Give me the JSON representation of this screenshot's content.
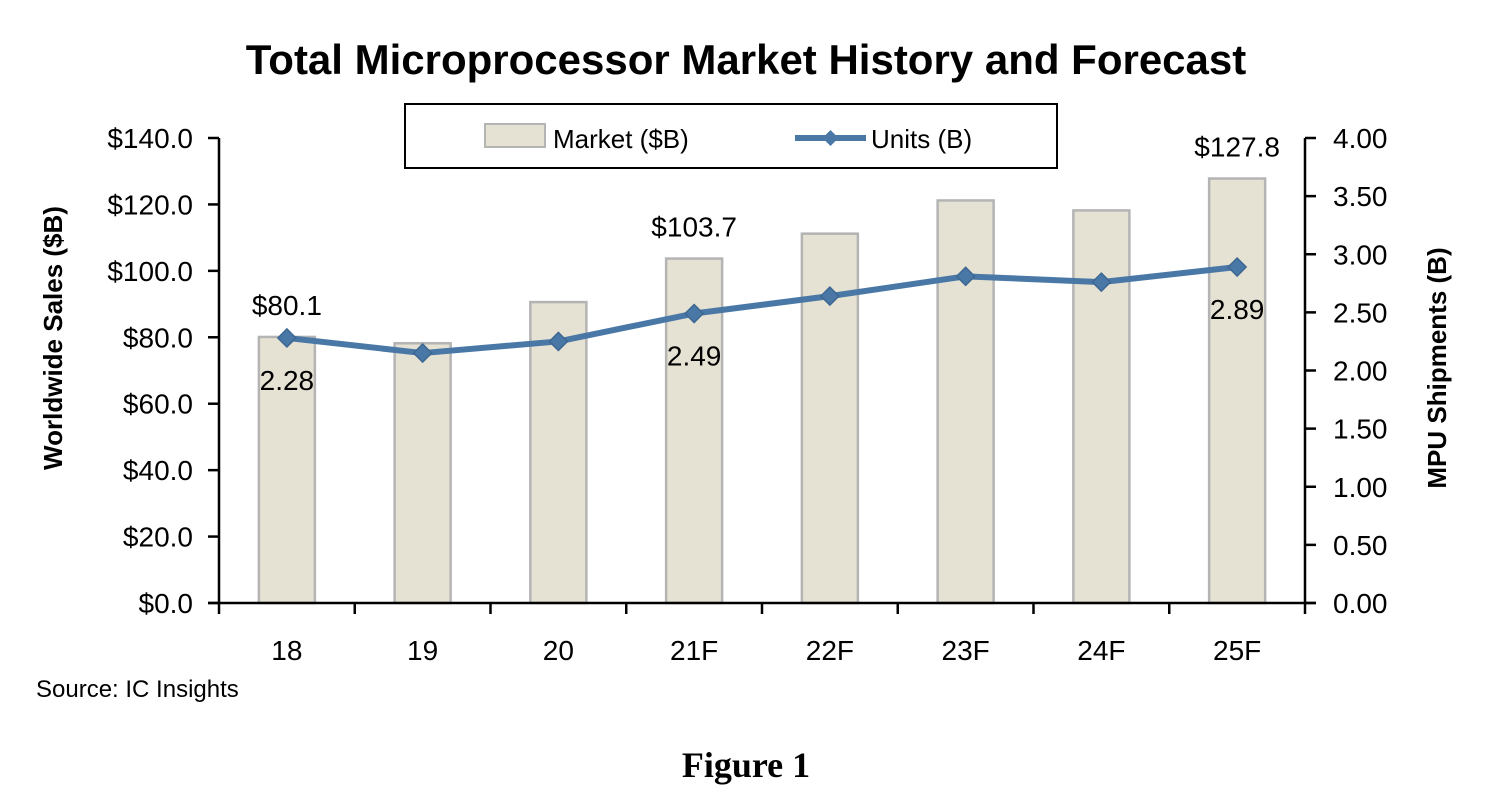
{
  "chart_data": {
    "type": "bar",
    "title": "Total Microprocessor Market History and Forecast",
    "categories": [
      "18",
      "19",
      "20",
      "21F",
      "22F",
      "23F",
      "24F",
      "25F"
    ],
    "series": [
      {
        "name": "Market ($B)",
        "kind": "bar",
        "axis": "left",
        "values": [
          80.1,
          78.2,
          90.6,
          103.7,
          111.2,
          121.2,
          118.2,
          127.8
        ],
        "color": "#e6e2d3",
        "edge_color": "#b4b4b4"
      },
      {
        "name": "Units (B)",
        "kind": "line",
        "axis": "right",
        "values": [
          2.28,
          2.15,
          2.25,
          2.49,
          2.64,
          2.81,
          2.76,
          2.89
        ],
        "color": "#4a78a6",
        "marker": "diamond"
      }
    ],
    "ylabel": "Worldwide Sales ($B)",
    "y2label": "MPU Shipments (B)",
    "ylim": [
      0,
      140
    ],
    "y2lim": [
      0,
      4
    ],
    "yticks": [
      "$0.0",
      "$20.0",
      "$40.0",
      "$60.0",
      "$80.0",
      "$100.0",
      "$120.0",
      "$140.0"
    ],
    "y2ticks": [
      "0.00",
      "0.50",
      "1.00",
      "1.50",
      "2.00",
      "2.50",
      "3.00",
      "3.50",
      "4.00"
    ],
    "bar_labels": [
      {
        "index": 0,
        "text": "$80.1"
      },
      {
        "index": 3,
        "text": "$103.7"
      },
      {
        "index": 7,
        "text": "$127.8"
      }
    ],
    "line_labels": [
      {
        "index": 0,
        "text": "2.28"
      },
      {
        "index": 3,
        "text": "2.49"
      },
      {
        "index": 7,
        "text": "2.89"
      }
    ],
    "legend": {
      "position": "top-center",
      "entries": [
        "Market ($B)",
        "Units (B)"
      ]
    },
    "grid": false
  },
  "source": "Source:  IC Insights",
  "caption": "Figure 1"
}
